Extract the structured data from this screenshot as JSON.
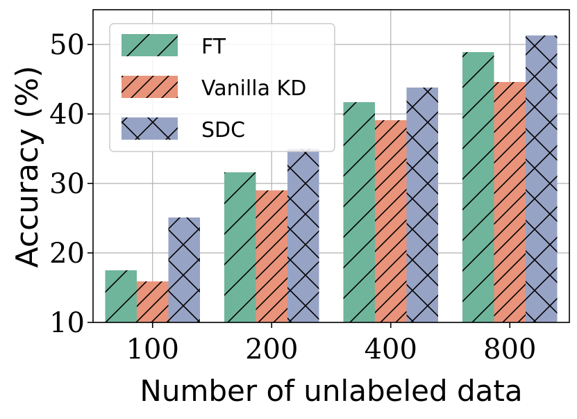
{
  "chart_data": {
    "type": "bar",
    "categories": [
      "100",
      "200",
      "400",
      "800"
    ],
    "series": [
      {
        "name": "FT",
        "values": [
          17.5,
          31.6,
          41.7,
          48.9
        ],
        "color": "#6fb59b",
        "hatch": "slash"
      },
      {
        "name": "Vanilla KD",
        "values": [
          15.9,
          29.0,
          39.1,
          44.6
        ],
        "color": "#e8937a",
        "hatch": "dense-slash"
      },
      {
        "name": "SDC",
        "values": [
          25.1,
          35.0,
          43.8,
          51.3
        ],
        "color": "#97a3c5",
        "hatch": "cross"
      }
    ],
    "title": "",
    "xlabel": "Number of unlabeled data",
    "ylabel": "Accuracy (%)",
    "ylim": [
      10,
      55
    ],
    "yticks": [
      "10",
      "20",
      "30",
      "40",
      "50"
    ],
    "grid": true,
    "legend_position": "upper-left"
  }
}
